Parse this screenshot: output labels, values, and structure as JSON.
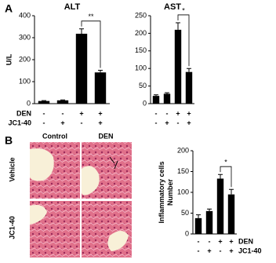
{
  "panels": [
    "A",
    "B"
  ],
  "chart_data": [
    {
      "type": "bar",
      "title": "ALT",
      "ylabel": [
        "U/L"
      ],
      "ylim": [
        0,
        400
      ],
      "yticks": [
        0,
        100,
        200,
        300,
        400
      ],
      "values": [
        12,
        15,
        318,
        142
      ],
      "errors": [
        2,
        2,
        22,
        10
      ],
      "color": "#000000",
      "conditions": [
        {
          "name": "DEN",
          "labels": [
            "-",
            "-",
            "+",
            "+"
          ]
        },
        {
          "name": "JC1-40",
          "labels": [
            "-",
            "+",
            "-",
            "+"
          ]
        }
      ],
      "significance": "**"
    },
    {
      "type": "bar",
      "title": "AST",
      "ylim": [
        0,
        250
      ],
      "yticks": [
        0,
        50,
        100,
        150,
        200,
        250
      ],
      "values": [
        22,
        28,
        210,
        90
      ],
      "errors": [
        3,
        3,
        20,
        10
      ],
      "color": "#000000",
      "conditions": [
        {
          "labels": [
            "-",
            "-",
            "+",
            "+"
          ]
        },
        {
          "labels": [
            "-",
            "+",
            "-",
            "+"
          ]
        }
      ],
      "significance": "*"
    },
    {
      "type": "bar",
      "ylabel": [
        "Inflammatory cells",
        "Number"
      ],
      "ylim": [
        0,
        200
      ],
      "yticks": [
        0,
        50,
        100,
        150,
        200
      ],
      "values": [
        38,
        55,
        133,
        95
      ],
      "errors": [
        8,
        5,
        10,
        12
      ],
      "color": "#000000",
      "conditions": [
        {
          "name": "DEN",
          "labels": [
            "-",
            "-",
            "+",
            "+"
          ]
        },
        {
          "name": "JC1-40",
          "labels": [
            "-",
            "+",
            "-",
            "+"
          ]
        }
      ],
      "significance": "*"
    }
  ],
  "micrographs": {
    "columns": [
      "Control",
      "DEN"
    ],
    "rows": [
      "Vehicle",
      "JC1-40"
    ]
  }
}
